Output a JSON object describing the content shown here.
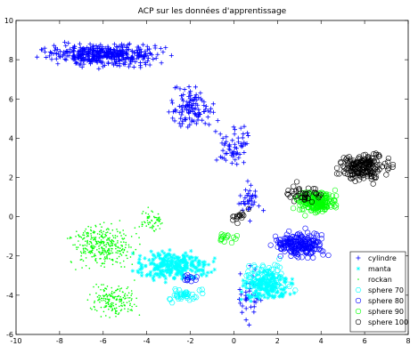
{
  "chart_data": {
    "type": "scatter",
    "title": "ACP sur les données d'apprentissage",
    "xlabel": "",
    "ylabel": "",
    "xlim": [
      -10,
      8
    ],
    "ylim": [
      -6,
      10
    ],
    "xticks": [
      "-10",
      "-8",
      "-6",
      "-4",
      "-2",
      "0",
      "2",
      "4",
      "6",
      "8"
    ],
    "yticks": [
      "-6",
      "-4",
      "-2",
      "0",
      "2",
      "4",
      "6",
      "8",
      "10"
    ],
    "grid": false,
    "legend_position": "bottom-right",
    "series": [
      {
        "name": "cylindre",
        "marker": "plus",
        "color": "#0000ff",
        "clusters": [
          {
            "x": [
              -9.5,
              -2.5
            ],
            "y": [
              7.5,
              9.0
            ],
            "n": 420
          },
          {
            "x": [
              -3.5,
              -0.5
            ],
            "y": [
              4.0,
              7.0
            ],
            "n": 110
          },
          {
            "x": [
              -1.0,
              1.0
            ],
            "y": [
              2.0,
              5.0
            ],
            "n": 60
          },
          {
            "x": [
              0.0,
              1.5
            ],
            "y": [
              -0.5,
              2.0
            ],
            "n": 35
          },
          {
            "x": [
              0.0,
              1.5
            ],
            "y": [
              -5.8,
              -2.0
            ],
            "n": 40
          }
        ]
      },
      {
        "name": "manta",
        "marker": "star",
        "color": "#00ffff",
        "clusters": [
          {
            "x": [
              -5.0,
              -0.5
            ],
            "y": [
              -3.5,
              -1.5
            ],
            "n": 300
          },
          {
            "x": [
              0.0,
              3.0
            ],
            "y": [
              -4.5,
              -2.5
            ],
            "n": 180
          }
        ]
      },
      {
        "name": "rockan",
        "marker": "point",
        "color": "#00ff00",
        "clusters": [
          {
            "x": [
              -8.0,
              -4.0
            ],
            "y": [
              -3.0,
              0.0
            ],
            "n": 350
          },
          {
            "x": [
              -7.0,
              -4.0
            ],
            "y": [
              -5.5,
              -3.0
            ],
            "n": 180
          },
          {
            "x": [
              -4.5,
              -3.0
            ],
            "y": [
              -1.0,
              0.6
            ],
            "n": 60
          }
        ]
      },
      {
        "name": "sphere 70",
        "marker": "hexagram",
        "color": "#00ffff",
        "clusters": [
          {
            "x": [
              -3.5,
              -1.0
            ],
            "y": [
              -4.5,
              -3.5
            ],
            "n": 40
          },
          {
            "x": [
              0.0,
              3.0
            ],
            "y": [
              -4.2,
              -2.0
            ],
            "n": 80
          }
        ]
      },
      {
        "name": "sphere 80",
        "marker": "circle",
        "color": "#0000ff",
        "clusters": [
          {
            "x": [
              1.5,
              4.5
            ],
            "y": [
              -2.3,
              -0.5
            ],
            "n": 220
          },
          {
            "x": [
              -2.5,
              -1.5
            ],
            "y": [
              -3.5,
              -2.8
            ],
            "n": 12
          }
        ]
      },
      {
        "name": "sphere 90",
        "marker": "circle",
        "color": "#00ff00",
        "clusters": [
          {
            "x": [
              2.5,
              5.0
            ],
            "y": [
              0.0,
              1.5
            ],
            "n": 200
          },
          {
            "x": [
              -1.0,
              0.5
            ],
            "y": [
              -1.5,
              -0.5
            ],
            "n": 15
          }
        ]
      },
      {
        "name": "sphere 100",
        "marker": "circle",
        "color": "#000000",
        "clusters": [
          {
            "x": [
              4.5,
              7.5
            ],
            "y": [
              1.5,
              3.5
            ],
            "n": 200
          },
          {
            "x": [
              2.0,
              4.5
            ],
            "y": [
              0.5,
              1.8
            ],
            "n": 40
          },
          {
            "x": [
              -0.5,
              1.0
            ],
            "y": [
              -0.5,
              0.5
            ],
            "n": 15
          }
        ]
      }
    ]
  }
}
